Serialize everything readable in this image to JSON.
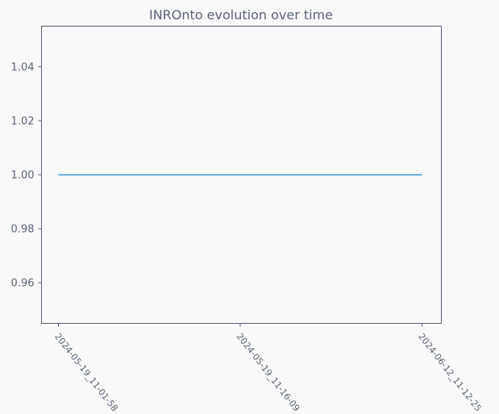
{
  "colors": {
    "background": "#f9f9f9",
    "axes": "#5b5b7a",
    "text": "#5b6376",
    "line": "#3a9bd8"
  },
  "chart_data": {
    "type": "line",
    "title": "INROnto evolution over time",
    "xlabel": "",
    "ylabel": "",
    "categories": [
      "2024-05-19_11-01-58",
      "2024-05-19_11-16-09",
      "2024-06-12_11-12-25"
    ],
    "series": [
      {
        "values": [
          1.0,
          1.0,
          1.0
        ]
      }
    ],
    "ylim": [
      0.945,
      1.055
    ],
    "yticks": [
      0.96,
      0.98,
      1.0,
      1.02,
      1.04
    ],
    "ytick_labels": [
      "0.96",
      "0.98",
      "1.00",
      "1.02",
      "1.04"
    ],
    "grid": false,
    "legend": "none"
  }
}
